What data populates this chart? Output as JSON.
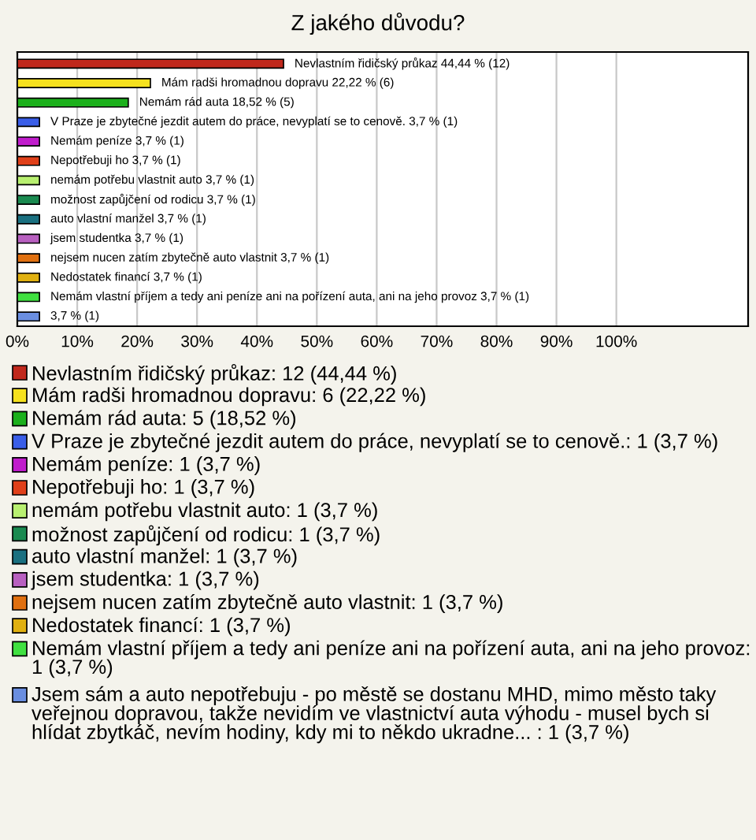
{
  "chart_data": {
    "type": "bar",
    "orientation": "horizontal",
    "title": "Z jakého důvodu?",
    "categories": [
      null,
      null,
      null,
      null,
      null,
      null,
      null,
      null,
      null,
      null,
      null,
      null,
      null,
      null
    ],
    "xlim": [
      0,
      122
    ],
    "xticks": [
      {
        "value": 0,
        "label": "0%"
      },
      {
        "value": 10,
        "label": "10%"
      },
      {
        "value": 20,
        "label": "20%"
      },
      {
        "value": 30,
        "label": "30%"
      },
      {
        "value": 40,
        "label": "40%"
      },
      {
        "value": 50,
        "label": "50%"
      },
      {
        "value": 60,
        "label": "60%"
      },
      {
        "value": 70,
        "label": "70%"
      },
      {
        "value": 80,
        "label": "80%"
      },
      {
        "value": 90,
        "label": "90%"
      },
      {
        "value": 100,
        "label": "100%"
      }
    ],
    "grid": "x",
    "legend": "bottom",
    "series": [
      {
        "name": "Nevlastním řidičský průkaz: 12 (44,44 %)",
        "color": "#c0281c",
        "values": [
          44.44,
          null,
          null,
          null,
          null,
          null,
          null,
          null,
          null,
          null,
          null,
          null,
          null,
          null
        ],
        "value_labels": [
          "Nevlastním řidičský průkaz 44,44 % (12)",
          null,
          null,
          null,
          null,
          null,
          null,
          null,
          null,
          null,
          null,
          null,
          null,
          null
        ]
      },
      {
        "name": "Mám radši hromadnou dopravu: 6 (22,22 %)",
        "color": "#f5e11e",
        "values": [
          null,
          22.22,
          null,
          null,
          null,
          null,
          null,
          null,
          null,
          null,
          null,
          null,
          null,
          null
        ],
        "value_labels": [
          null,
          "Mám radši hromadnou dopravu 22,22 % (6)",
          null,
          null,
          null,
          null,
          null,
          null,
          null,
          null,
          null,
          null,
          null,
          null
        ]
      },
      {
        "name": "Nemám rád auta: 5 (18,52 %)",
        "color": "#1cb01c",
        "values": [
          null,
          null,
          18.52,
          null,
          null,
          null,
          null,
          null,
          null,
          null,
          null,
          null,
          null,
          null
        ],
        "value_labels": [
          null,
          null,
          "Nemám rád auta 18,52 % (5)",
          null,
          null,
          null,
          null,
          null,
          null,
          null,
          null,
          null,
          null,
          null
        ]
      },
      {
        "name": "V Praze je zbytečné jezdit autem do práce, nevyplatí se to cenově.: 1 (3,7 %)",
        "color": "#3a5ee8",
        "values": [
          null,
          null,
          null,
          3.7,
          null,
          null,
          null,
          null,
          null,
          null,
          null,
          null,
          null,
          null
        ],
        "value_labels": [
          null,
          null,
          null,
          "V Praze je zbytečné jezdit autem do práce, nevyplatí se to cenově. 3,7 % (1)",
          null,
          null,
          null,
          null,
          null,
          null,
          null,
          null,
          null,
          null
        ]
      },
      {
        "name": "Nemám peníze: 1 (3,7 %)",
        "color": "#c01ccc",
        "values": [
          null,
          null,
          null,
          null,
          3.7,
          null,
          null,
          null,
          null,
          null,
          null,
          null,
          null,
          null
        ],
        "value_labels": [
          null,
          null,
          null,
          null,
          "Nemám peníze 3,7 % (1)",
          null,
          null,
          null,
          null,
          null,
          null,
          null,
          null,
          null
        ]
      },
      {
        "name": "Nepotřebuji ho: 1 (3,7 %)",
        "color": "#e0401a",
        "values": [
          null,
          null,
          null,
          null,
          null,
          3.7,
          null,
          null,
          null,
          null,
          null,
          null,
          null,
          null
        ],
        "value_labels": [
          null,
          null,
          null,
          null,
          null,
          "Nepotřebuji ho 3,7 % (1)",
          null,
          null,
          null,
          null,
          null,
          null,
          null,
          null
        ]
      },
      {
        "name": "nemám potřebu vlastnit auto: 1 (3,7 %)",
        "color": "#b8f070",
        "values": [
          null,
          null,
          null,
          null,
          null,
          null,
          3.7,
          null,
          null,
          null,
          null,
          null,
          null,
          null
        ],
        "value_labels": [
          null,
          null,
          null,
          null,
          null,
          null,
          "nemám potřebu vlastnit auto 3,7 % (1)",
          null,
          null,
          null,
          null,
          null,
          null,
          null
        ]
      },
      {
        "name": "možnost zapůjčení od rodicu: 1 (3,7 %)",
        "color": "#1a8a50",
        "values": [
          null,
          null,
          null,
          null,
          null,
          null,
          null,
          3.7,
          null,
          null,
          null,
          null,
          null,
          null
        ],
        "value_labels": [
          null,
          null,
          null,
          null,
          null,
          null,
          null,
          "možnost zapůjčení od rodicu 3,7 % (1)",
          null,
          null,
          null,
          null,
          null,
          null
        ]
      },
      {
        "name": "auto vlastní manžel: 1 (3,7 %)",
        "color": "#1a7080",
        "values": [
          null,
          null,
          null,
          null,
          null,
          null,
          null,
          null,
          3.7,
          null,
          null,
          null,
          null,
          null
        ],
        "value_labels": [
          null,
          null,
          null,
          null,
          null,
          null,
          null,
          null,
          "auto vlastní manžel 3,7 % (1)",
          null,
          null,
          null,
          null,
          null
        ]
      },
      {
        "name": "jsem studentka: 1 (3,7 %)",
        "color": "#b860c0",
        "values": [
          null,
          null,
          null,
          null,
          null,
          null,
          null,
          null,
          null,
          3.7,
          null,
          null,
          null,
          null
        ],
        "value_labels": [
          null,
          null,
          null,
          null,
          null,
          null,
          null,
          null,
          null,
          "jsem studentka 3,7 % (1)",
          null,
          null,
          null,
          null
        ]
      },
      {
        "name": "nejsem nucen zatím zbytečně auto vlastnit: 1 (3,7 %)",
        "color": "#e07010",
        "values": [
          null,
          null,
          null,
          null,
          null,
          null,
          null,
          null,
          null,
          null,
          3.7,
          null,
          null,
          null
        ],
        "value_labels": [
          null,
          null,
          null,
          null,
          null,
          null,
          null,
          null,
          null,
          null,
          "nejsem nucen zatím zbytečně auto vlastnit 3,7 % (1)",
          null,
          null,
          null
        ]
      },
      {
        "name": "Nedostatek financí: 1 (3,7 %)",
        "color": "#e0b010",
        "values": [
          null,
          null,
          null,
          null,
          null,
          null,
          null,
          null,
          null,
          null,
          null,
          3.7,
          null,
          null
        ],
        "value_labels": [
          null,
          null,
          null,
          null,
          null,
          null,
          null,
          null,
          null,
          null,
          null,
          "Nedostatek financí 3,7 % (1)",
          null,
          null
        ]
      },
      {
        "name": "Nemám vlastní příjem a tedy ani peníze ani na pořízení auta, ani na jeho provoz: 1 (3,7 %)",
        "color": "#40e040",
        "values": [
          null,
          null,
          null,
          null,
          null,
          null,
          null,
          null,
          null,
          null,
          null,
          null,
          3.7,
          null
        ],
        "value_labels": [
          null,
          null,
          null,
          null,
          null,
          null,
          null,
          null,
          null,
          null,
          null,
          null,
          "Nemám vlastní příjem a tedy ani peníze ani na pořízení auta, ani na jeho provoz 3,7 % (1)",
          null
        ]
      },
      {
        "name": "Jsem sám a auto nepotřebuju - po městě se dostanu MHD, mimo město taky veřejnou dopravou, takže nevidím ve vlastnictví auta výhodu - musel bych si hlídat zbytkáč, nevím hodiny, kdy mi to někdo ukradne... : 1 (3,7 %)",
        "color": "#6a8ee0",
        "values": [
          null,
          null,
          null,
          null,
          null,
          null,
          null,
          null,
          null,
          null,
          null,
          null,
          null,
          3.7
        ],
        "value_labels": [
          null,
          null,
          null,
          null,
          null,
          null,
          null,
          null,
          null,
          null,
          null,
          null,
          null,
          "3,7 % (1)"
        ]
      }
    ]
  }
}
